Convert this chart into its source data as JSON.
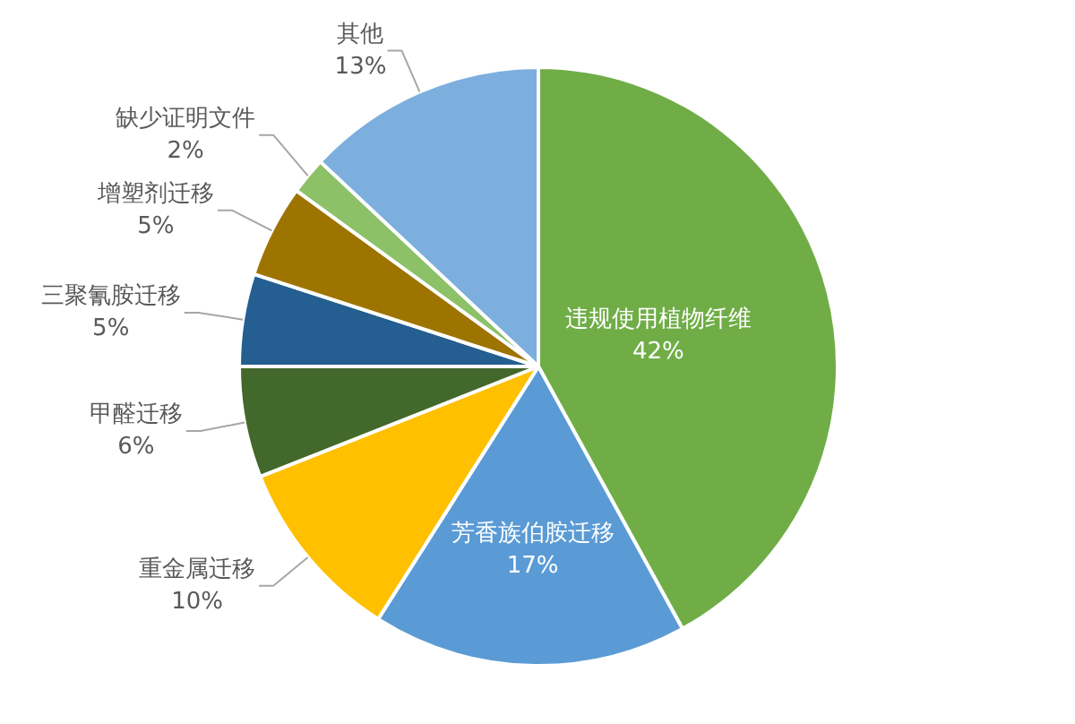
{
  "chart_data": {
    "type": "pie",
    "categories": [
      "违规使用植物纤维",
      "芳香族伯胺迁移",
      "重金属迁移",
      "甲醛迁移",
      "三聚氰胺迁移",
      "增塑剂迁移",
      "缺少证明文件",
      "其他"
    ],
    "values": [
      42,
      17,
      10,
      6,
      5,
      5,
      2,
      13
    ],
    "colors": [
      "#70ad47",
      "#5b9bd5",
      "#ffc000",
      "#43682b",
      "#255e91",
      "#9e7400",
      "#8cc168",
      "#7cafdd"
    ],
    "value_labels": [
      "42%",
      "17%",
      "10%",
      "6%",
      "5%",
      "5%",
      "2%",
      "13%"
    ]
  }
}
